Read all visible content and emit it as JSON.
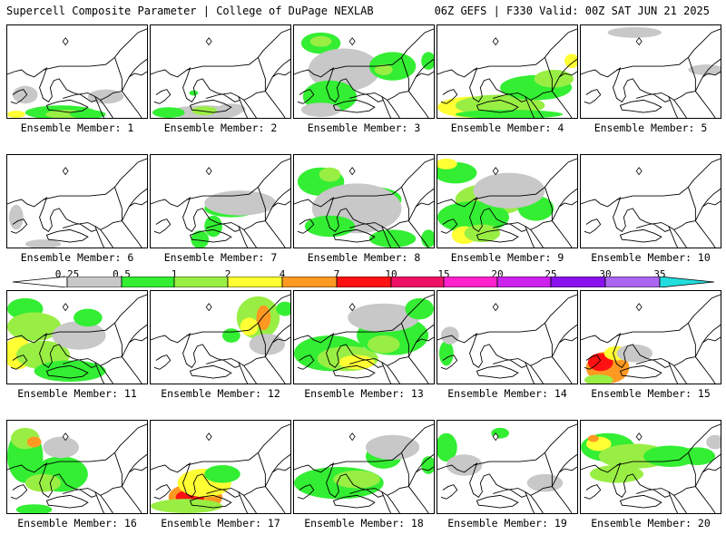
{
  "header": {
    "title": "Supercell Composite Parameter | College of DuPage NEXLAB",
    "run_info": "06Z GEFS | F330 Valid: 00Z SAT JUN 21 2025"
  },
  "legend": {
    "ticks": [
      "0.25",
      "0.5",
      "1",
      "2",
      "4",
      "7",
      "10",
      "15",
      "20",
      "25",
      "30",
      "35"
    ],
    "colors": [
      "#c8c8c8",
      "#33ee33",
      "#99ee44",
      "#ffff33",
      "#ff9922",
      "#ff1111",
      "#ee1166",
      "#ff22cc",
      "#cc22ee",
      "#8811ee",
      "#aa66ee",
      "#22dddd"
    ]
  },
  "members": [
    {
      "label": "Ensemble Member: 1"
    },
    {
      "label": "Ensemble Member: 2"
    },
    {
      "label": "Ensemble Member: 3"
    },
    {
      "label": "Ensemble Member: 4"
    },
    {
      "label": "Ensemble Member: 5"
    },
    {
      "label": "Ensemble Member: 6"
    },
    {
      "label": "Ensemble Member: 7"
    },
    {
      "label": "Ensemble Member: 8"
    },
    {
      "label": "Ensemble Member: 9"
    },
    {
      "label": "Ensemble Member: 10"
    },
    {
      "label": "Ensemble Member: 11"
    },
    {
      "label": "Ensemble Member: 12"
    },
    {
      "label": "Ensemble Member: 13"
    },
    {
      "label": "Ensemble Member: 14"
    },
    {
      "label": "Ensemble Member: 15"
    },
    {
      "label": "Ensemble Member: 16"
    },
    {
      "label": "Ensemble Member: 17"
    },
    {
      "label": "Ensemble Member: 18"
    },
    {
      "label": "Ensemble Member: 19"
    },
    {
      "label": "Ensemble Member: 20"
    }
  ]
}
